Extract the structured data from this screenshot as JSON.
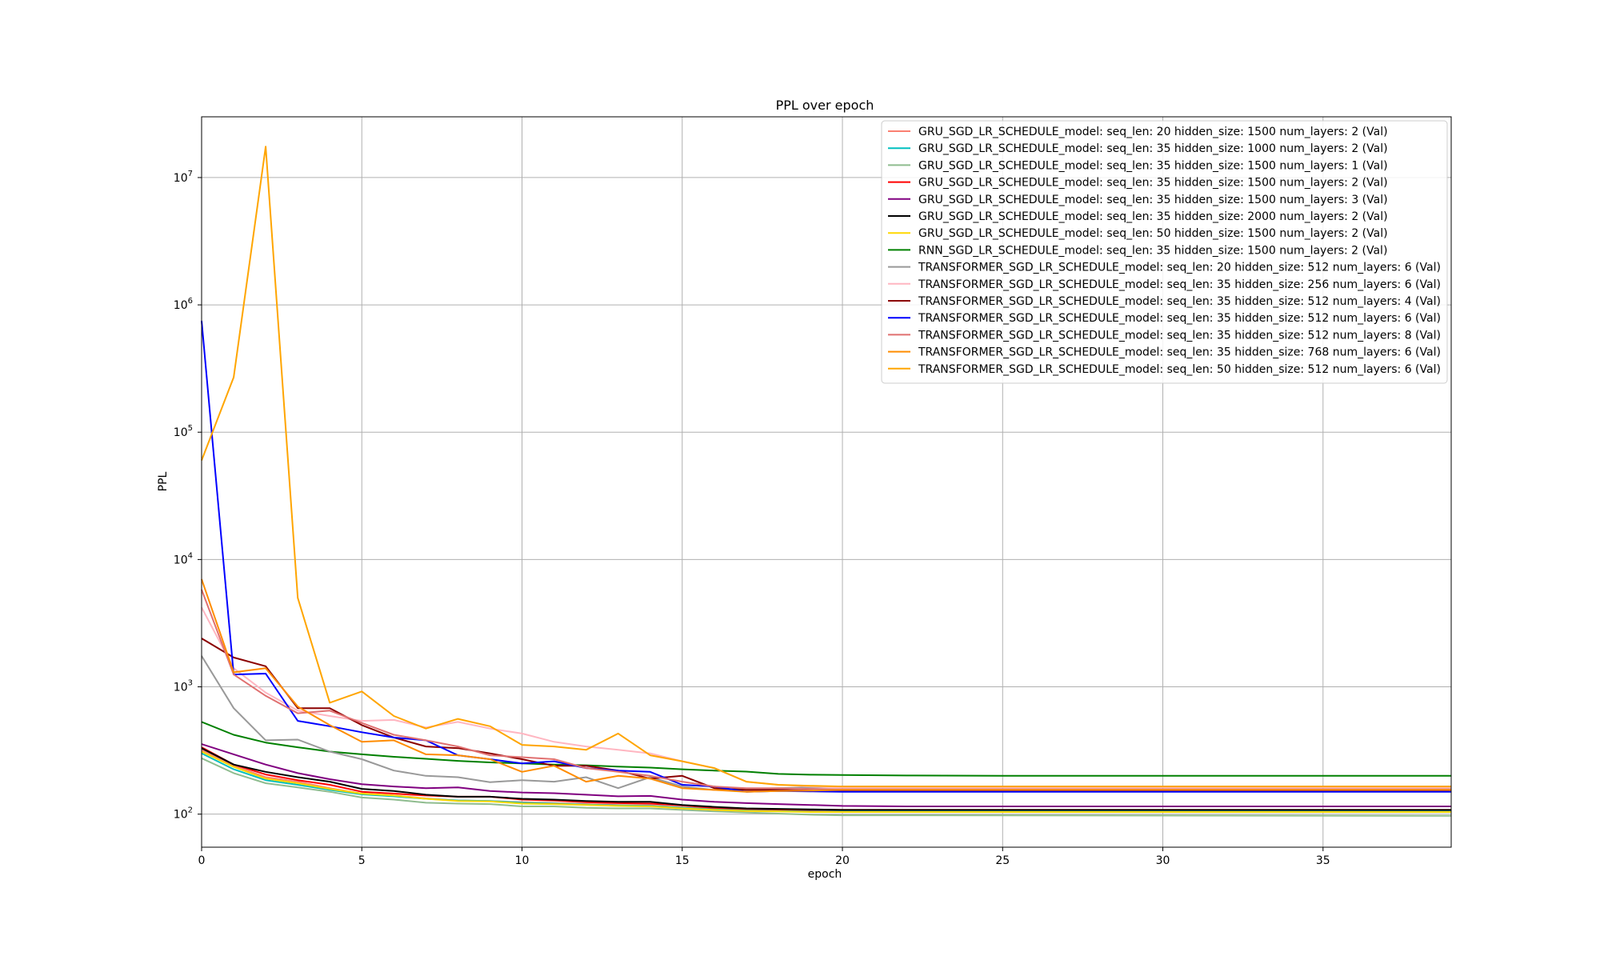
{
  "chart_data": {
    "type": "line",
    "title": "PPL over epoch",
    "xlabel": "epoch",
    "ylabel": "PPL",
    "yscale": "log",
    "xlim": [
      0,
      39
    ],
    "ylim": [
      55,
      30000000
    ],
    "grid": true,
    "legend_position": "upper right",
    "x_ticks": [
      0,
      5,
      10,
      15,
      20,
      25,
      30,
      35
    ],
    "y_ticks": [
      {
        "value": 100,
        "base": "10",
        "exp": "2"
      },
      {
        "value": 1000,
        "base": "10",
        "exp": "3"
      },
      {
        "value": 10000,
        "base": "10",
        "exp": "4"
      },
      {
        "value": 100000,
        "base": "10",
        "exp": "5"
      },
      {
        "value": 1000000,
        "base": "10",
        "exp": "6"
      },
      {
        "value": 10000000,
        "base": "10",
        "exp": "7"
      }
    ],
    "series": [
      {
        "name": "GRU_SGD_LR_SCHEDULE_model: seq_len: 20 hidden_size: 1500 num_layers: 2 (Val)",
        "color": "#fa8072",
        "x": [
          0,
          1,
          2,
          3,
          4,
          5,
          6,
          7,
          8,
          9,
          10,
          11,
          12,
          13,
          14,
          15,
          16,
          17,
          18,
          19,
          20,
          39
        ],
        "values": [
          320,
          240,
          195,
          180,
          160,
          145,
          140,
          133,
          128,
          127,
          124,
          122,
          120,
          118,
          117,
          113,
          110,
          108,
          107,
          106,
          106,
          106
        ]
      },
      {
        "name": "GRU_SGD_LR_SCHEDULE_model: seq_len: 35 hidden_size: 1000 num_layers: 2 (Val)",
        "color": "#00bfbf",
        "x": [
          0,
          1,
          2,
          3,
          4,
          5,
          6,
          7,
          8,
          9,
          10,
          11,
          12,
          13,
          14,
          15,
          16,
          17,
          18,
          19,
          20,
          39
        ],
        "values": [
          300,
          225,
          185,
          170,
          155,
          143,
          138,
          132,
          128,
          127,
          123,
          121,
          119,
          117,
          116,
          112,
          109,
          107,
          106,
          105,
          105,
          105
        ]
      },
      {
        "name": "GRU_SGD_LR_SCHEDULE_model: seq_len: 35 hidden_size: 1500 num_layers: 1 (Val)",
        "color": "#8fbc8f",
        "x": [
          0,
          1,
          2,
          3,
          4,
          5,
          6,
          7,
          8,
          9,
          10,
          11,
          12,
          13,
          14,
          15,
          16,
          17,
          18,
          19,
          20,
          39
        ],
        "values": [
          275,
          210,
          175,
          162,
          150,
          135,
          130,
          123,
          121,
          120,
          115,
          115,
          112,
          111,
          111,
          108,
          105,
          103,
          101,
          99,
          98,
          97
        ]
      },
      {
        "name": "GRU_SGD_LR_SCHEDULE_model: seq_len: 35 hidden_size: 1500 num_layers: 2 (Val)",
        "color": "#ff0000",
        "x": [
          0,
          1,
          2,
          3,
          4,
          5,
          6,
          7,
          8,
          9,
          10,
          11,
          12,
          13,
          14,
          15,
          16,
          17,
          18,
          19,
          20,
          39
        ],
        "values": [
          335,
          245,
          205,
          185,
          170,
          150,
          145,
          140,
          137,
          137,
          130,
          128,
          124,
          122,
          121,
          117,
          112,
          110,
          109,
          108,
          108,
          108
        ]
      },
      {
        "name": "GRU_SGD_LR_SCHEDULE_model: seq_len: 35 hidden_size: 1500 num_layers: 3 (Val)",
        "color": "#800080",
        "x": [
          0,
          1,
          2,
          3,
          4,
          5,
          6,
          7,
          8,
          9,
          10,
          11,
          12,
          13,
          14,
          15,
          16,
          17,
          18,
          19,
          20,
          22,
          39
        ],
        "values": [
          355,
          295,
          245,
          210,
          188,
          172,
          165,
          160,
          162,
          152,
          148,
          146,
          142,
          138,
          139,
          130,
          125,
          122,
          120,
          118,
          116,
          115,
          115
        ]
      },
      {
        "name": "GRU_SGD_LR_SCHEDULE_model: seq_len: 35 hidden_size: 2000 num_layers: 2 (Val)",
        "color": "#000000",
        "x": [
          0,
          1,
          2,
          3,
          4,
          5,
          6,
          7,
          8,
          9,
          10,
          11,
          12,
          13,
          14,
          15,
          16,
          17,
          18,
          19,
          20,
          39
        ],
        "values": [
          330,
          245,
          215,
          195,
          180,
          158,
          152,
          142,
          137,
          137,
          132,
          130,
          127,
          125,
          125,
          118,
          114,
          111,
          110,
          109,
          108,
          108
        ]
      },
      {
        "name": "GRU_SGD_LR_SCHEDULE_model: seq_len: 50 hidden_size: 1500 num_layers: 2 (Val)",
        "color": "#ffd700",
        "x": [
          0,
          1,
          2,
          3,
          4,
          5,
          6,
          7,
          8,
          9,
          10,
          11,
          12,
          13,
          14,
          15,
          16,
          17,
          18,
          19,
          20,
          39
        ],
        "values": [
          310,
          235,
          190,
          175,
          158,
          145,
          140,
          132,
          127,
          126,
          121,
          120,
          118,
          116,
          115,
          111,
          108,
          106,
          105,
          104,
          104,
          104
        ]
      },
      {
        "name": "RNN_SGD_LR_SCHEDULE_model: seq_len: 35 hidden_size: 1500 num_layers: 2 (Val)",
        "color": "#008000",
        "x": [
          0,
          1,
          2,
          3,
          4,
          5,
          6,
          7,
          8,
          9,
          10,
          11,
          12,
          13,
          14,
          15,
          16,
          17,
          18,
          19,
          20,
          22,
          25,
          39
        ],
        "values": [
          530,
          420,
          365,
          335,
          310,
          295,
          282,
          272,
          262,
          255,
          250,
          245,
          242,
          236,
          232,
          225,
          220,
          216,
          207,
          204,
          203,
          201,
          200,
          200
        ]
      },
      {
        "name": "TRANSFORMER_SGD_LR_SCHEDULE_model: seq_len: 20 hidden_size: 512 num_layers: 6 (Val)",
        "color": "#999999",
        "x": [
          0,
          1,
          2,
          3,
          4,
          5,
          6,
          7,
          8,
          9,
          10,
          11,
          12,
          13,
          14,
          15,
          16,
          17,
          18,
          19,
          20,
          39
        ],
        "values": [
          1750,
          680,
          380,
          385,
          310,
          270,
          220,
          200,
          195,
          178,
          185,
          180,
          195,
          160,
          195,
          165,
          155,
          158,
          160,
          162,
          165,
          165
        ]
      },
      {
        "name": "TRANSFORMER_SGD_LR_SCHEDULE_model: seq_len: 35 hidden_size: 256 num_layers: 6 (Val)",
        "color": "#ffb6c1",
        "x": [
          0,
          1,
          2,
          3,
          4,
          5,
          6,
          7,
          8,
          9,
          10,
          11,
          12,
          13,
          14,
          15,
          16,
          17,
          18,
          19,
          20,
          39
        ],
        "values": [
          4200,
          1400,
          900,
          650,
          590,
          540,
          550,
          480,
          530,
          470,
          430,
          370,
          340,
          320,
          300,
          260,
          230,
          180,
          170,
          165,
          162,
          162
        ]
      },
      {
        "name": "TRANSFORMER_SGD_LR_SCHEDULE_model: seq_len: 35 hidden_size: 512 num_layers: 4 (Val)",
        "color": "#8b0000",
        "x": [
          0,
          1,
          2,
          3,
          4,
          5,
          6,
          7,
          8,
          9,
          10,
          11,
          12,
          13,
          14,
          15,
          16,
          17,
          18,
          19,
          20,
          39
        ],
        "values": [
          2400,
          1700,
          1450,
          680,
          680,
          500,
          400,
          340,
          330,
          300,
          270,
          240,
          240,
          220,
          190,
          200,
          160,
          155,
          155,
          153,
          152,
          152
        ]
      },
      {
        "name": "TRANSFORMER_SGD_LR_SCHEDULE_model: seq_len: 35 hidden_size: 512 num_layers: 6 (Val)",
        "color": "#0000ff",
        "x": [
          0,
          1,
          2,
          3,
          4,
          5,
          6,
          7,
          8,
          9,
          10,
          11,
          12,
          13,
          14,
          15,
          16,
          17,
          18,
          19,
          20,
          39
        ],
        "values": [
          750000,
          1250,
          1270,
          540,
          490,
          440,
          400,
          380,
          290,
          270,
          250,
          260,
          230,
          220,
          215,
          170,
          165,
          150,
          152,
          151,
          150,
          150
        ]
      },
      {
        "name": "TRANSFORMER_SGD_LR_SCHEDULE_model: seq_len: 35 hidden_size: 512 num_layers: 8 (Val)",
        "color": "#e07070",
        "x": [
          0,
          1,
          2,
          3,
          4,
          5,
          6,
          7,
          8,
          9,
          10,
          11,
          12,
          13,
          14,
          15,
          16,
          17,
          18,
          19,
          20,
          39
        ],
        "values": [
          5800,
          1250,
          850,
          620,
          650,
          520,
          420,
          380,
          340,
          290,
          280,
          270,
          230,
          215,
          200,
          180,
          165,
          160,
          160,
          158,
          157,
          157
        ]
      },
      {
        "name": "TRANSFORMER_SGD_LR_SCHEDULE_model: seq_len: 35 hidden_size: 768 num_layers: 6 (Val)",
        "color": "#ff8c00",
        "x": [
          0,
          1,
          2,
          3,
          4,
          5,
          6,
          7,
          8,
          9,
          10,
          11,
          12,
          13,
          14,
          15,
          16,
          17,
          18,
          19,
          20,
          39
        ],
        "values": [
          7000,
          1300,
          1400,
          700,
          500,
          370,
          380,
          295,
          290,
          270,
          215,
          240,
          180,
          200,
          190,
          160,
          155,
          150,
          152,
          153,
          155,
          155
        ]
      },
      {
        "name": "TRANSFORMER_SGD_LR_SCHEDULE_model: seq_len: 50 hidden_size: 512 num_layers: 6 (Val)",
        "color": "#ffa500",
        "x": [
          0,
          1,
          2,
          3,
          4,
          5,
          6,
          7,
          8,
          9,
          10,
          11,
          12,
          13,
          14,
          15,
          16,
          17,
          18,
          19,
          20,
          39
        ],
        "values": [
          60000,
          270000,
          17500000,
          5000,
          750,
          920,
          590,
          470,
          560,
          490,
          350,
          340,
          320,
          430,
          290,
          260,
          230,
          180,
          170,
          167,
          165,
          165
        ]
      }
    ]
  }
}
